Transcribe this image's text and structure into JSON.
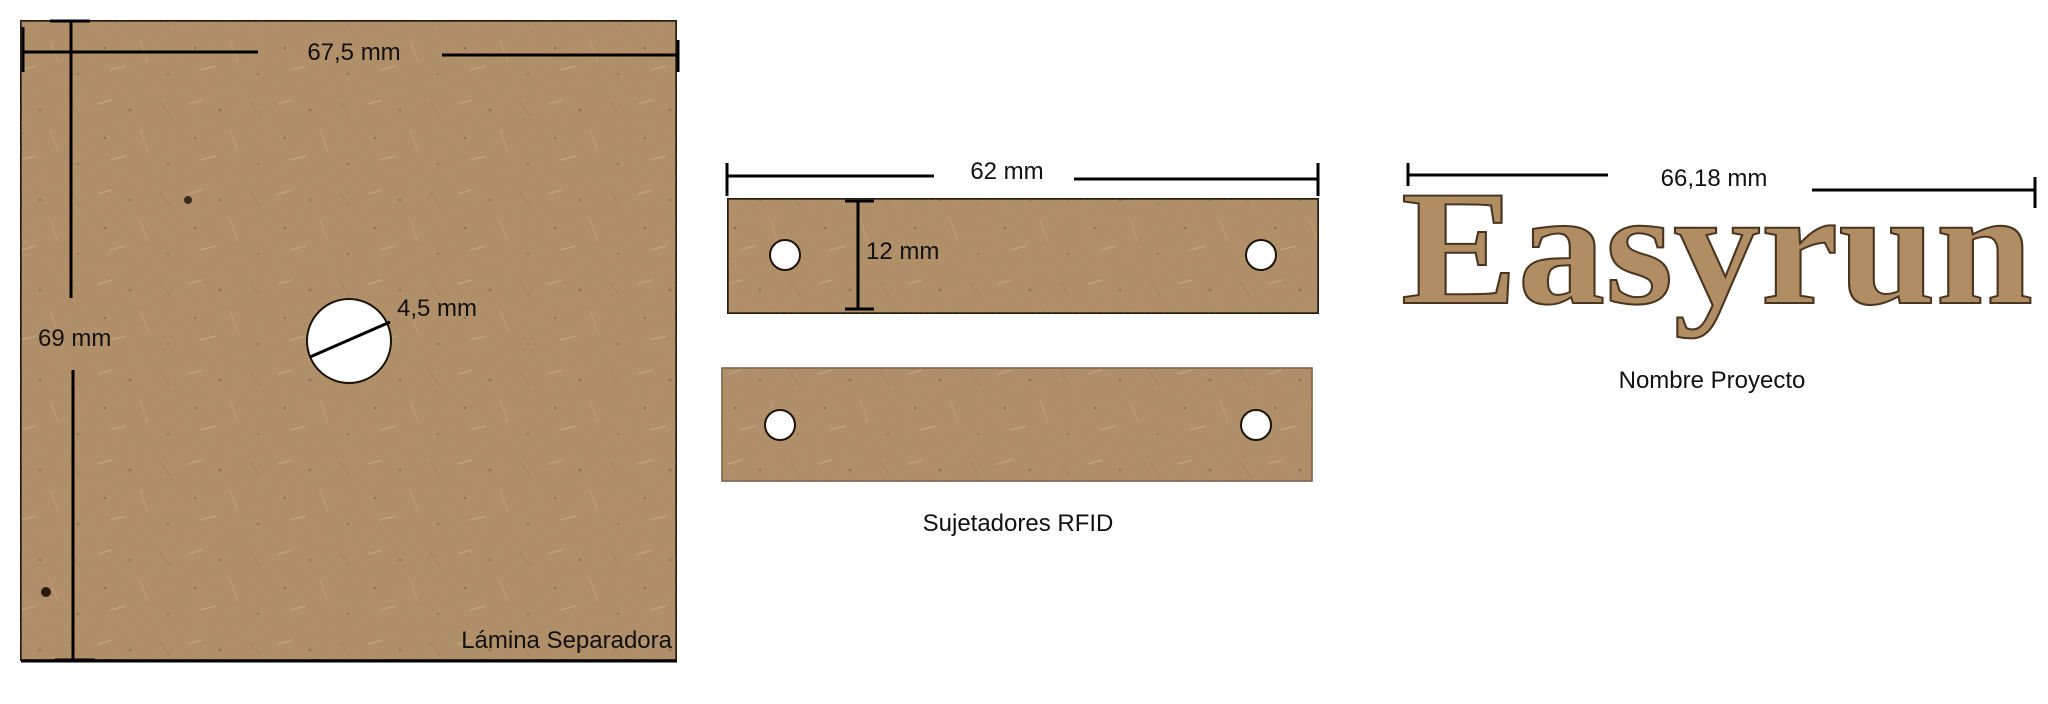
{
  "colors": {
    "mdf": "#b18d64",
    "mdf_dark": "#8d6a45",
    "mdf_edge": "#2a1d10",
    "dimension_line": "#000000",
    "text": "#111111",
    "background": "#ffffff"
  },
  "separator_sheet": {
    "caption": "Lámina Separadora",
    "width_label": "67,5 mm",
    "height_label": "69 mm",
    "hole_label": "4,5 mm"
  },
  "rfid_holders": {
    "caption": "Sujetadores RFID",
    "width_label": "62 mm",
    "height_label": "12 mm"
  },
  "project_name": {
    "caption": "Nombre Proyecto",
    "width_label": "66,18 mm",
    "cutout_text": "Easyrun"
  }
}
